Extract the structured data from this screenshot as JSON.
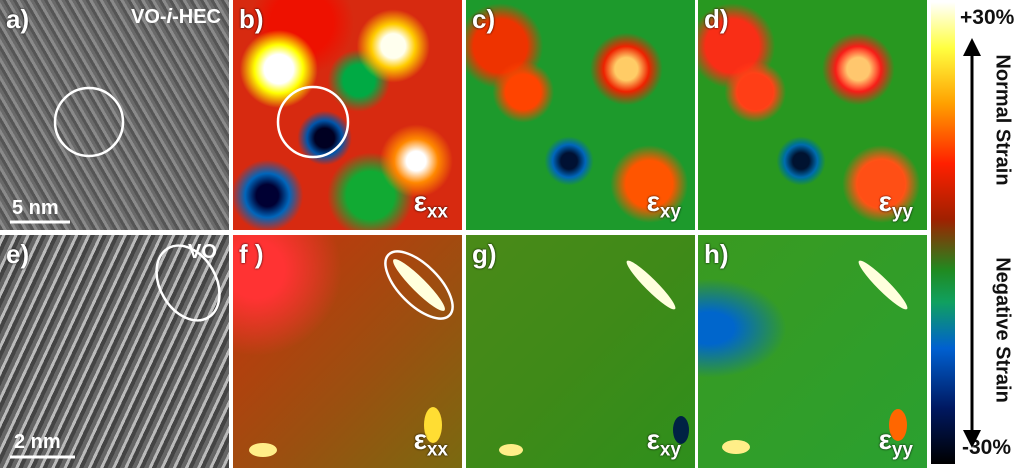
{
  "panels": [
    {
      "label": "a)",
      "title": {
        "prefix": "VO-",
        "italic": "i",
        "suffix": "-HEC"
      },
      "scale_bar": "5 nm"
    },
    {
      "label": "b)",
      "strain": {
        "symbol": "ε",
        "subscript": "xx"
      }
    },
    {
      "label": "c)",
      "strain": {
        "symbol": "ε",
        "subscript": "xy"
      }
    },
    {
      "label": "d)",
      "strain": {
        "symbol": "ε",
        "subscript": "yy"
      }
    },
    {
      "label": "e)",
      "annotation": "VO",
      "scale_bar": "2 nm"
    },
    {
      "label": "f )",
      "strain": {
        "symbol": "ε",
        "subscript": "xx"
      }
    },
    {
      "label": "g)",
      "strain": {
        "symbol": "ε",
        "subscript": "xy"
      }
    },
    {
      "label": "h)",
      "strain": {
        "symbol": "ε",
        "subscript": "yy"
      }
    }
  ],
  "colorbar": {
    "max": "+30%",
    "min": "-30%",
    "upper_label": "Normal Strain",
    "lower_label": "Negative Strain"
  }
}
